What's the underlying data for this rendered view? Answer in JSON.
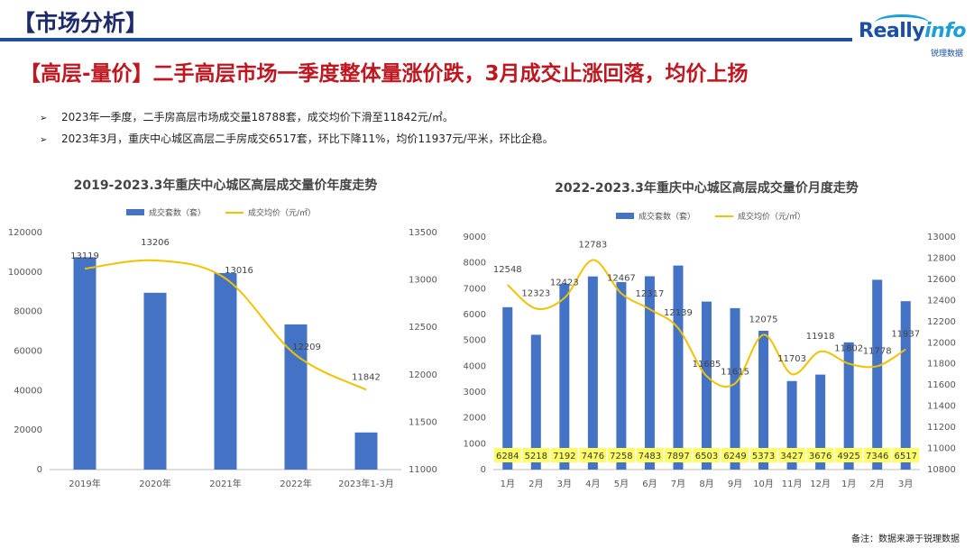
{
  "header": {
    "title": "【市场分析】"
  },
  "logo": {
    "main_a": "Really",
    "main_b": "info",
    "sub": "锐理数据"
  },
  "headline": "【高层-量价】二手高层市场一季度整体量涨价跌，3月成交止涨回落，均价上扬",
  "bullets": [
    "2023年一季度，二手房高层市场成交量18788套，成交均价下滑至11842元/㎡。",
    "2023年3月，重庆中心城区高层二手房成交6517套，环比下降11%，均价11937元/平米，环比企稳。"
  ],
  "footnote": "备注：数据来源于锐理数据",
  "colors": {
    "bar": "#4472c4",
    "line": "#f2c200",
    "label_bg": "#ffff66"
  },
  "chart_data": [
    {
      "type": "bar",
      "title": "2019-2023.3年重庆中心城区高层成交量价年度走势",
      "categories": [
        "2019年",
        "2020年",
        "2021年",
        "2022年",
        "2023年1-3月"
      ],
      "series": [
        {
          "name": "成交套数（套）",
          "type": "bar",
          "axis": "left",
          "values": [
            107500,
            89500,
            99500,
            73500,
            18788
          ]
        },
        {
          "name": "成交均价（元/㎡）",
          "type": "line",
          "axis": "right",
          "values": [
            13119,
            13206,
            13016,
            12209,
            11842
          ]
        }
      ],
      "y_left": {
        "min": 0,
        "max": 120000,
        "ticks": [
          "0",
          "20000",
          "40000",
          "60000",
          "80000",
          "100000",
          "120000"
        ]
      },
      "y_right": {
        "min": 11000,
        "max": 13500,
        "ticks": [
          "11000",
          "11500",
          "12000",
          "12500",
          "13000",
          "13500"
        ]
      },
      "line_labels": [
        "13119",
        "13206",
        "13016",
        "12209",
        "11842"
      ],
      "legend": "top"
    },
    {
      "type": "bar",
      "title": "2022-2023.3年重庆中心城区高层成交量价月度走势",
      "categories": [
        "1月",
        "2月",
        "3月",
        "4月",
        "5月",
        "6月",
        "7月",
        "8月",
        "9月",
        "10月",
        "11月",
        "12月",
        "1月",
        "2月",
        "3月"
      ],
      "series": [
        {
          "name": "成交套数（套）",
          "type": "bar",
          "axis": "left",
          "values": [
            6284,
            5218,
            7192,
            7476,
            7258,
            7483,
            7897,
            6503,
            6249,
            5373,
            3427,
            3676,
            4925,
            7346,
            6517
          ]
        },
        {
          "name": "成交均价（元/㎡）",
          "type": "line",
          "axis": "right",
          "values": [
            12548,
            12323,
            12423,
            12783,
            12467,
            12317,
            12139,
            11685,
            11615,
            12075,
            11703,
            11918,
            11802,
            11778,
            11937
          ]
        }
      ],
      "bar_labels": [
        "6284",
        "5218",
        "7192",
        "7476",
        "7258",
        "7483",
        "7897",
        "6503",
        "6249",
        "5373",
        "3427",
        "3676",
        "4925",
        "7346",
        "6517"
      ],
      "line_labels": [
        "12548",
        "12323",
        "12423",
        "12783",
        "12467",
        "12317",
        "12139",
        "11685",
        "11615",
        "12075",
        "11703",
        "11918",
        "11802",
        "11778",
        "11937"
      ],
      "y_left": {
        "min": 0,
        "max": 9000,
        "ticks": [
          "0",
          "1000",
          "2000",
          "3000",
          "4000",
          "5000",
          "6000",
          "7000",
          "8000",
          "9000"
        ]
      },
      "y_right": {
        "min": 10800,
        "max": 13000,
        "ticks": [
          "10800",
          "11000",
          "11200",
          "11400",
          "11600",
          "11800",
          "12000",
          "12200",
          "12400",
          "12600",
          "12800",
          "13000"
        ]
      },
      "legend": "top"
    }
  ]
}
